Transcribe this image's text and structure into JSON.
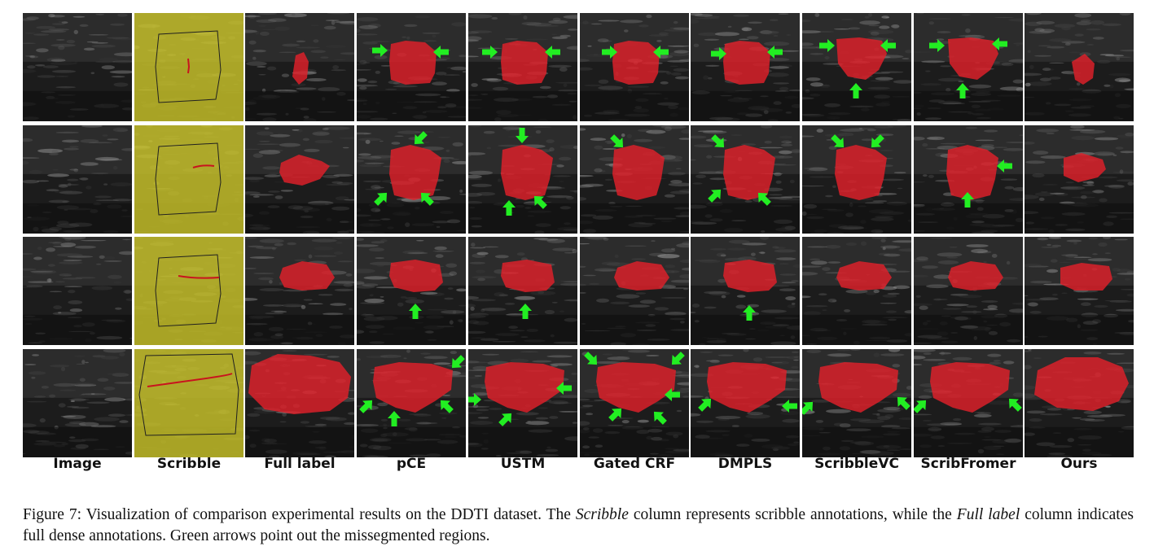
{
  "figure": {
    "columns": [
      "Image",
      "Scribble",
      "Full label",
      "pCE",
      "USTM",
      "Gated CRF",
      "DMPLS",
      "ScribbleVC",
      "ScribFromer",
      "Ours"
    ],
    "caption": {
      "prefix": "Figure 7: Visualization of comparison experimental results on the DDTI dataset. The ",
      "em1": "Scribble",
      "middle": " column represents scribble annotations, while the ",
      "em2": "Full label",
      "suffix": " column indicates full dense annotations. Green arrows point out the missegmented regions."
    },
    "colors": {
      "mask": "#e0202a",
      "arrow": "#22ee22",
      "scribble_overlay": "#c9c32a",
      "scribble_line": "#c8141e",
      "roi_line": "#202020"
    },
    "row_count": 4
  }
}
